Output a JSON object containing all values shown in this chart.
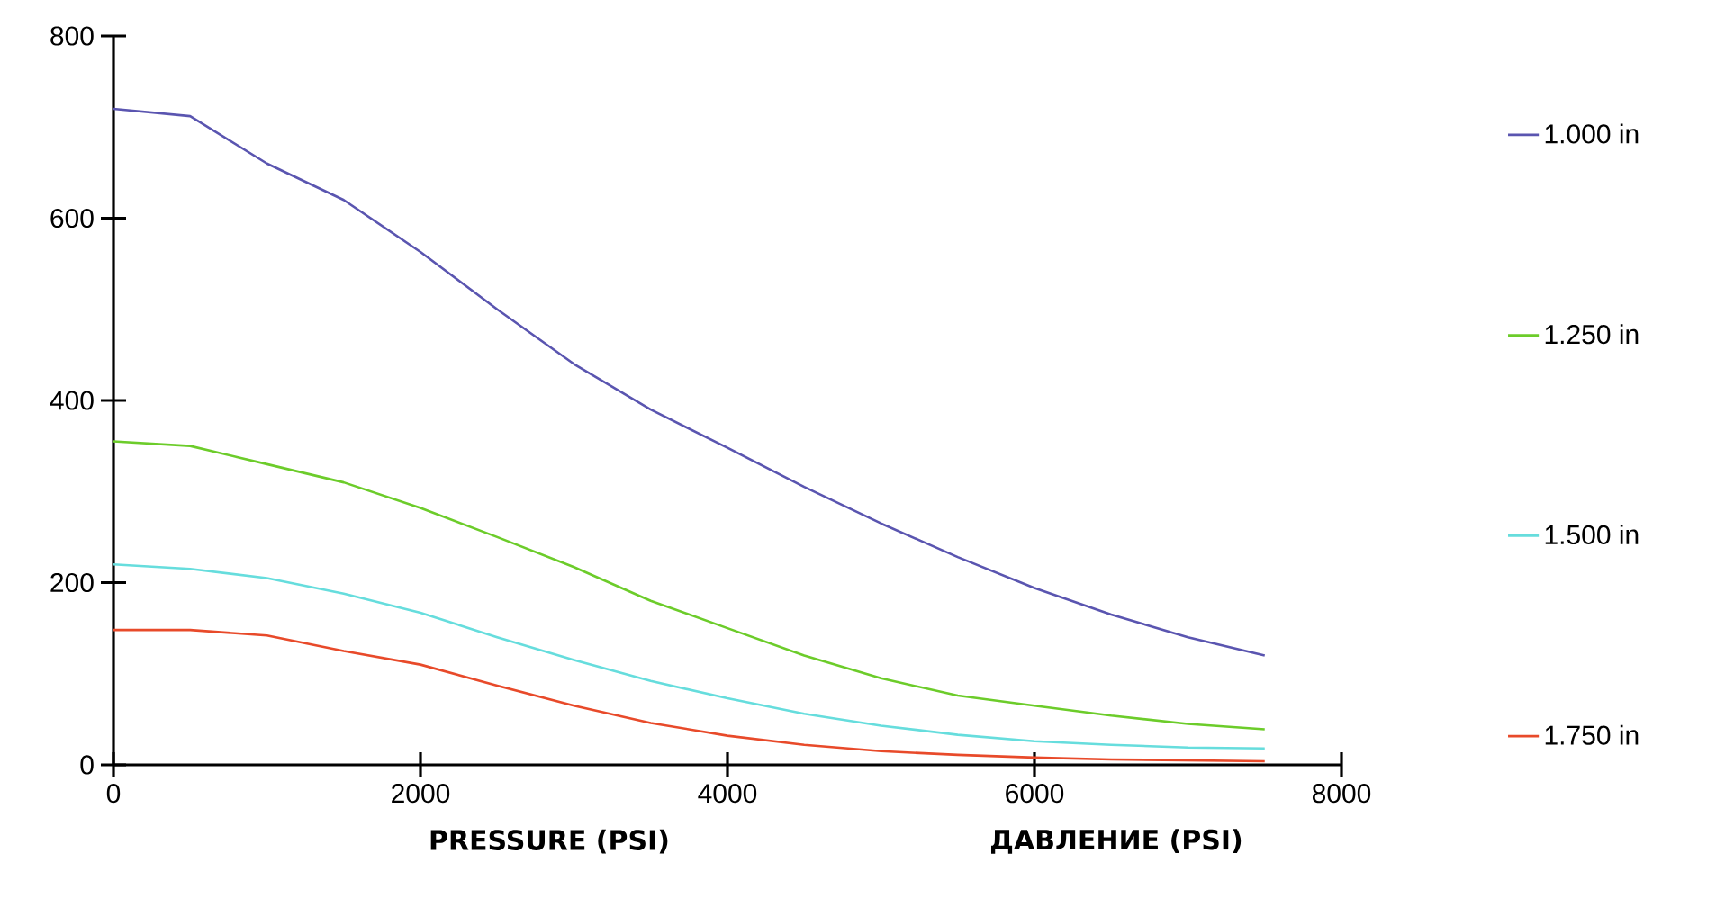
{
  "chart_data": {
    "type": "line",
    "xlabel": "PRESSURE (PSI)",
    "annotations": [
      "ДАВЛЕНИЕ (PSI)"
    ],
    "x": [
      0,
      500,
      1000,
      1500,
      2000,
      2500,
      3000,
      3500,
      4000,
      4500,
      5000,
      5500,
      6000,
      6500,
      7000,
      7500
    ],
    "series": [
      {
        "name": "1.000 in",
        "color": "#5a55b0",
        "values": [
          720,
          712,
          660,
          620,
          563,
          500,
          440,
          390,
          348,
          305,
          265,
          228,
          194,
          165,
          140,
          120
        ]
      },
      {
        "name": "1.250 in",
        "color": "#6ccc2a",
        "values": [
          355,
          350,
          330,
          310,
          282,
          250,
          217,
          180,
          150,
          120,
          95,
          76,
          65,
          54,
          45,
          39
        ]
      },
      {
        "name": "1.500 in",
        "color": "#66dddd",
        "values": [
          220,
          215,
          205,
          188,
          167,
          140,
          115,
          92,
          73,
          56,
          43,
          33,
          26,
          22,
          19,
          18
        ]
      },
      {
        "name": "1.750 in",
        "color": "#e84a2a",
        "values": [
          148,
          148,
          142,
          125,
          110,
          87,
          65,
          46,
          32,
          22,
          15,
          11,
          8,
          6,
          5,
          4
        ]
      }
    ],
    "xlim": [
      0,
      8000
    ],
    "ylim": [
      0,
      800
    ],
    "xticks": [
      0,
      2000,
      4000,
      6000,
      8000
    ],
    "yticks": [
      0,
      200,
      400,
      600,
      800
    ],
    "legend": "right",
    "grid": false,
    "marker": "none"
  }
}
